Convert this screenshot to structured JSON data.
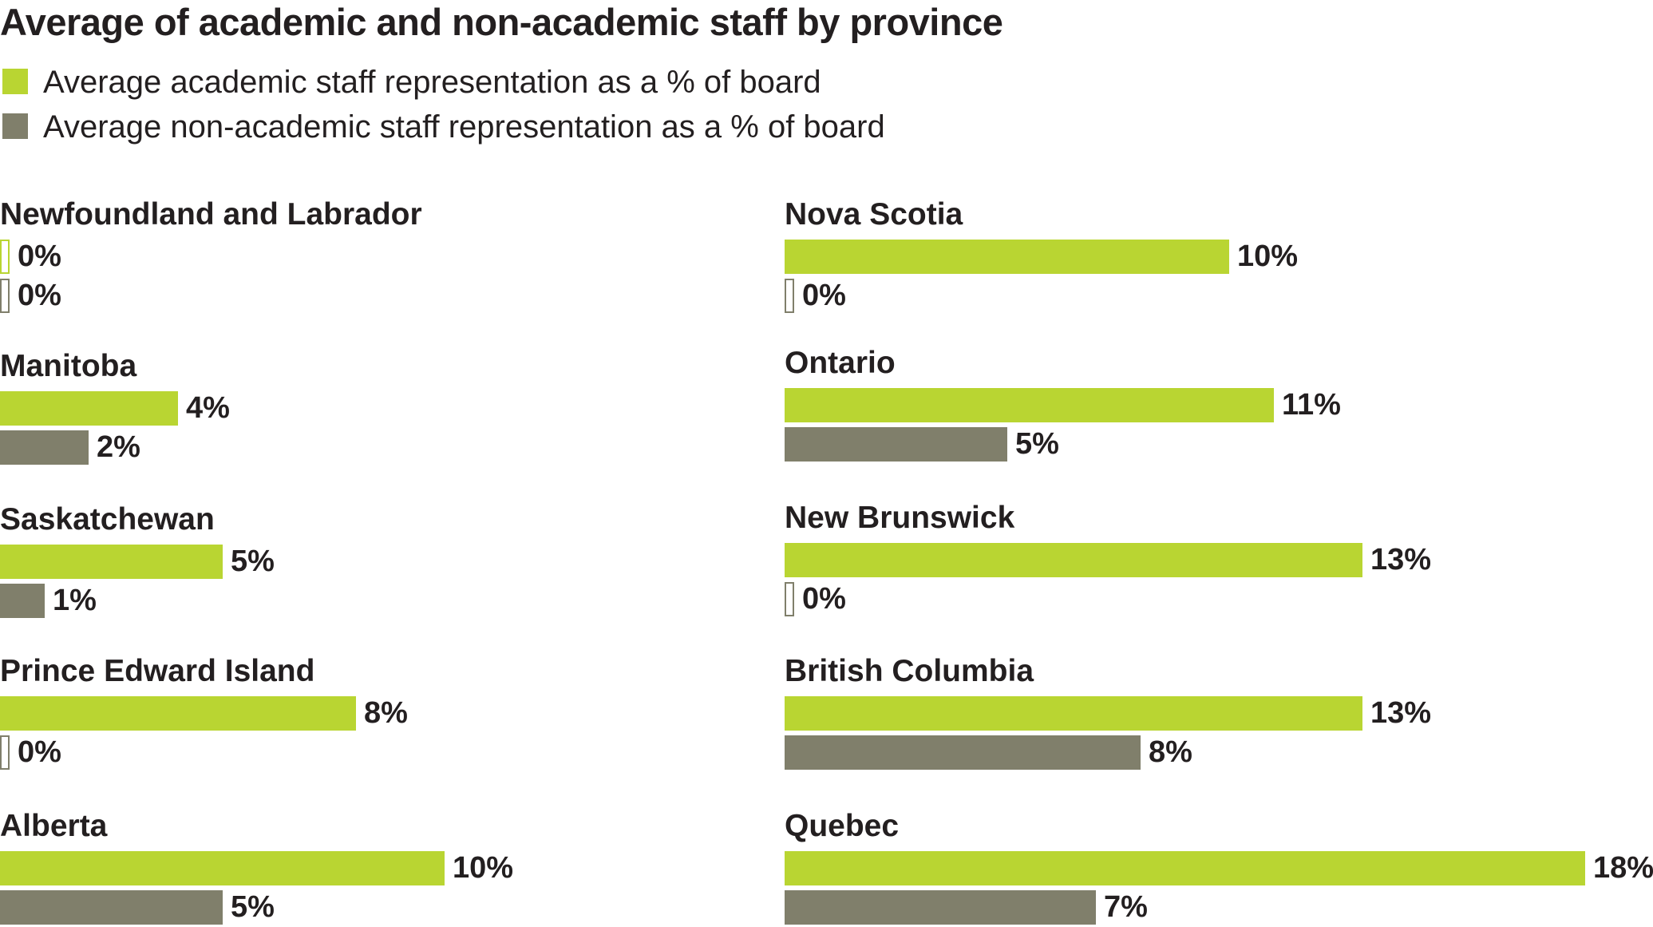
{
  "chart_data": {
    "type": "bar",
    "orientation": "horizontal",
    "title": "Average of academic and non-academic staff by province",
    "colors": {
      "academic": "#b9d532",
      "non_academic": "#807f6b"
    },
    "legend": [
      {
        "key": "academic",
        "label": "Average academic staff representation as a % of board"
      },
      {
        "key": "non_academic",
        "label": "Average non-academic staff representation as a % of board"
      }
    ],
    "legend_position": "top-left",
    "grid": false,
    "xlim": [
      0,
      18
    ],
    "categories": [
      "Newfoundland and Labrador",
      "Manitoba",
      "Saskatchewan",
      "Prince Edward Island",
      "Alberta",
      "Nova Scotia",
      "Ontario",
      "New Brunswick",
      "British Columbia",
      "Quebec"
    ],
    "provinces": [
      {
        "name": "Newfoundland and Labrador",
        "academic": 0,
        "academic_label": "0%",
        "non_academic": 0,
        "non_academic_label": "0%"
      },
      {
        "name": "Manitoba",
        "academic": 4,
        "academic_label": "4%",
        "non_academic": 2,
        "non_academic_label": "2%"
      },
      {
        "name": "Saskatchewan",
        "academic": 5,
        "academic_label": "5%",
        "non_academic": 1,
        "non_academic_label": "1%"
      },
      {
        "name": "Prince Edward Island",
        "academic": 8,
        "academic_label": "8%",
        "non_academic": 0,
        "non_academic_label": "0%"
      },
      {
        "name": "Alberta",
        "academic": 10,
        "academic_label": "10%",
        "non_academic": 5,
        "non_academic_label": "5%"
      },
      {
        "name": "Nova Scotia",
        "academic": 10,
        "academic_label": "10%",
        "non_academic": 0,
        "non_academic_label": "0%"
      },
      {
        "name": "Ontario",
        "academic": 11,
        "academic_label": "11%",
        "non_academic": 5,
        "non_academic_label": "5%"
      },
      {
        "name": "New Brunswick",
        "academic": 13,
        "academic_label": "13%",
        "non_academic": 0,
        "non_academic_label": "0%"
      },
      {
        "name": "British Columbia",
        "academic": 13,
        "academic_label": "13%",
        "non_academic": 8,
        "non_academic_label": "8%"
      },
      {
        "name": "Quebec",
        "academic": 18,
        "academic_label": "18%",
        "non_academic": 7,
        "non_academic_label": "7%"
      }
    ]
  }
}
